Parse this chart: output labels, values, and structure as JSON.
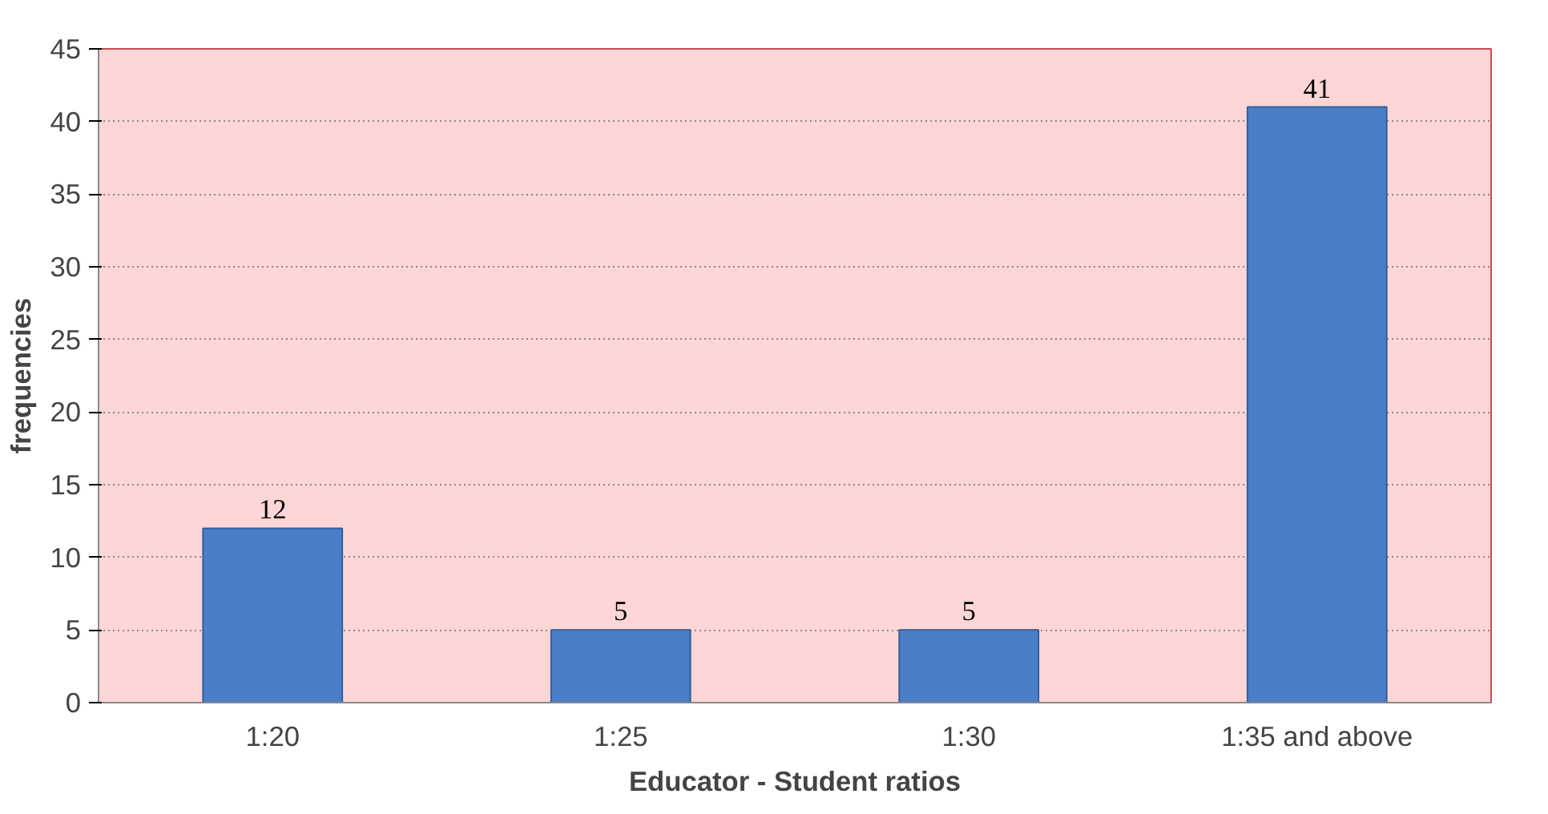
{
  "chart_data": {
    "type": "bar",
    "xlabel": "Educator - Student ratios",
    "ylabel": "frequencies",
    "categories": [
      "1:20",
      "1:25",
      "1:30",
      "1:35 and above"
    ],
    "values": [
      12,
      5,
      5,
      41
    ],
    "color": "#4a7fc8",
    "ylim": [
      0,
      45
    ],
    "yticks": [
      0,
      5,
      10,
      15,
      20,
      25,
      30,
      35,
      40,
      45
    ],
    "grid": "y",
    "data_labels": true
  }
}
